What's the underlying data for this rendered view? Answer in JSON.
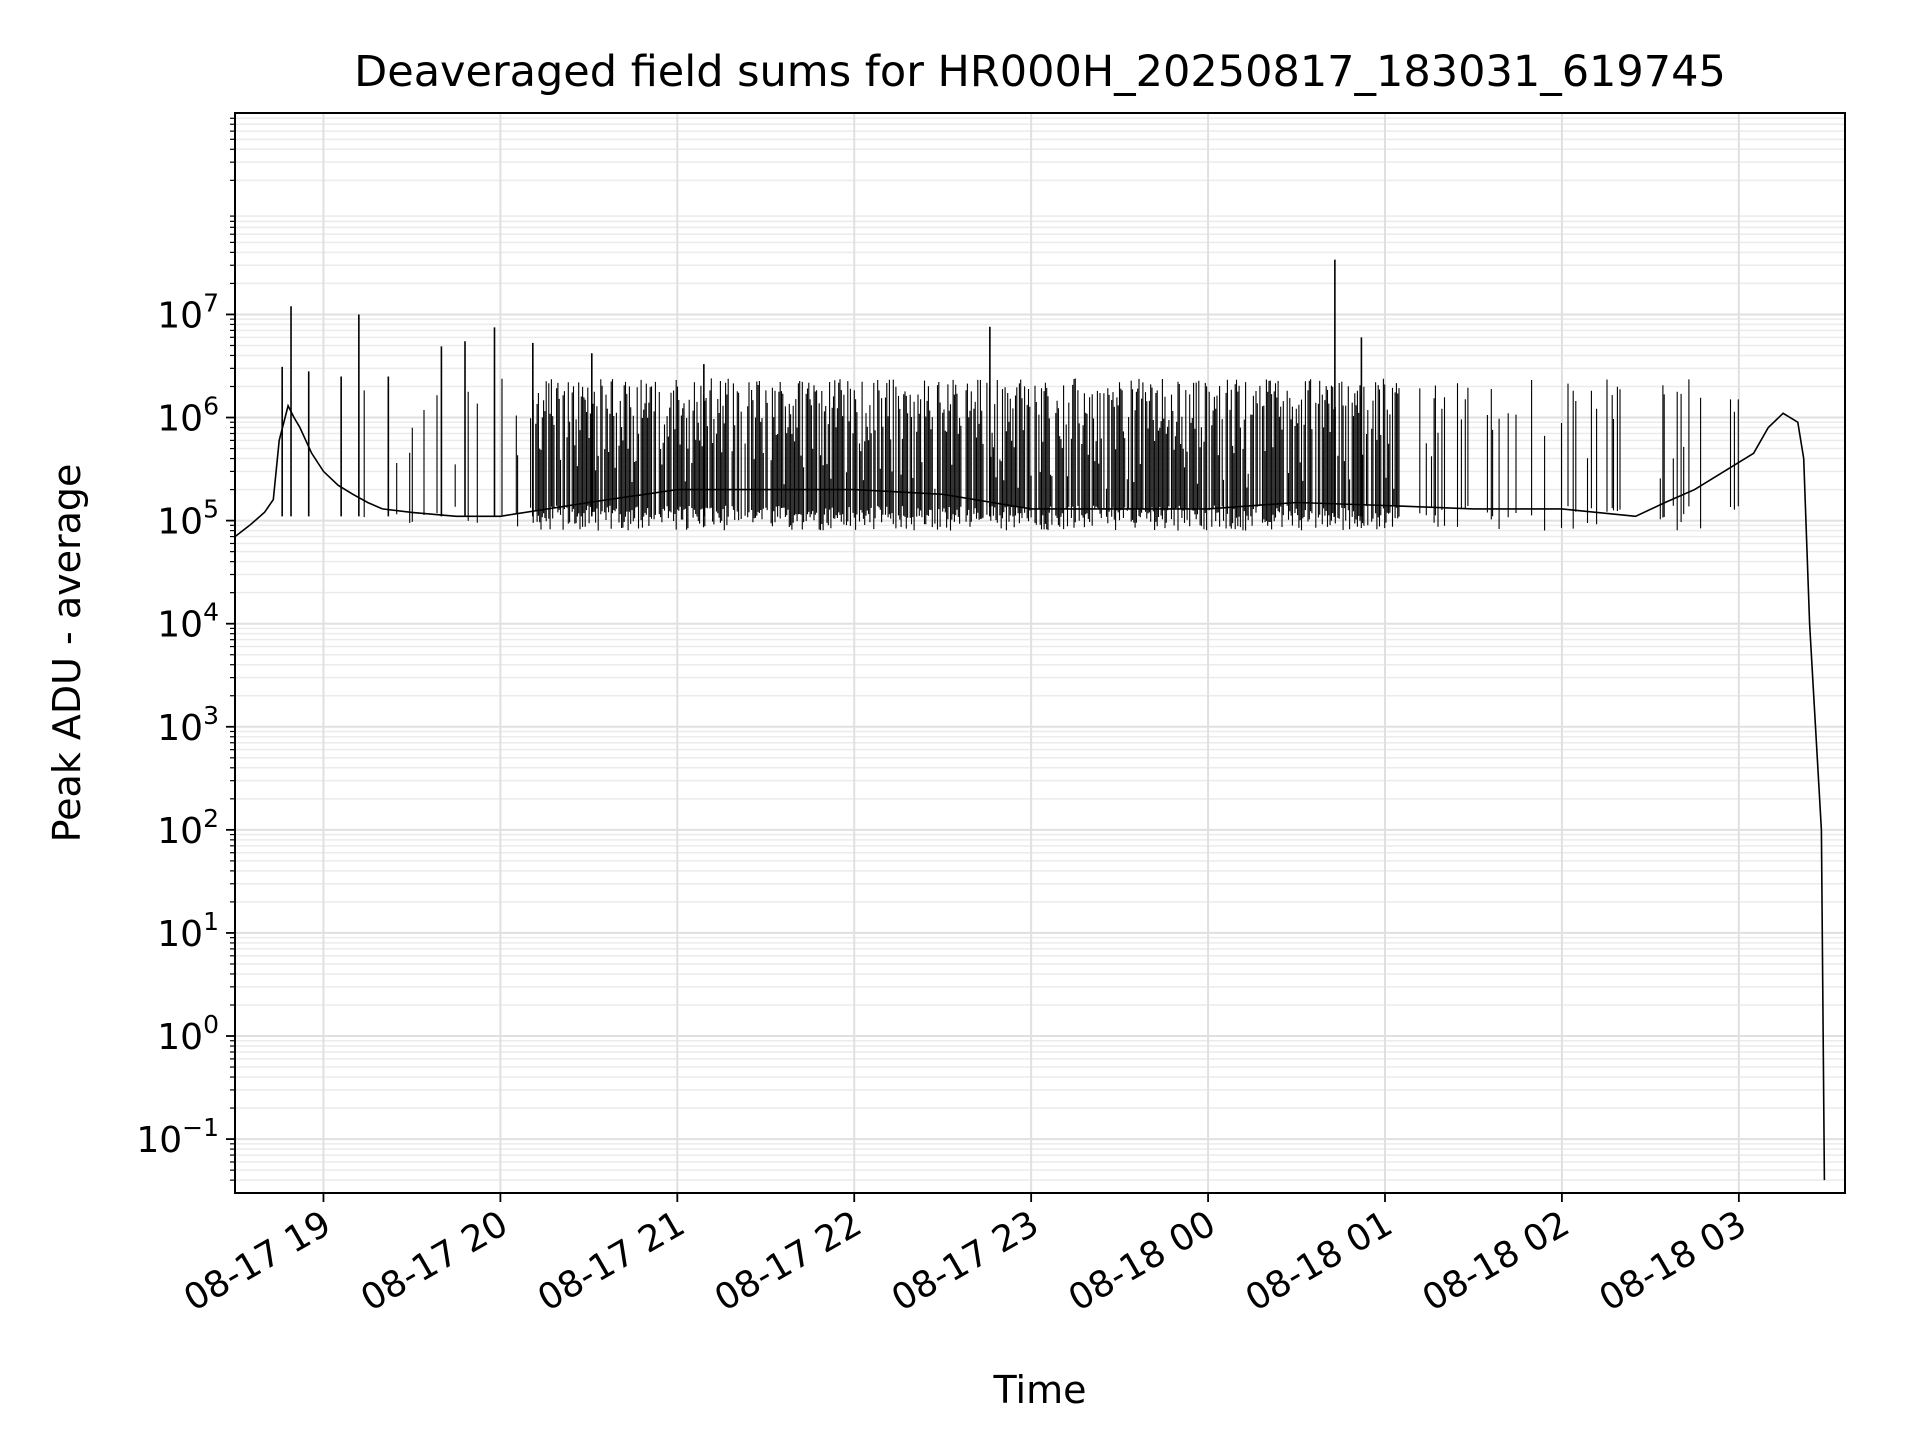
{
  "chart_data": {
    "type": "line",
    "title": "Deaveraged field sums for HR000H_20250817_183031_619745",
    "xlabel": "Time",
    "ylabel": "Peak ADU - average",
    "x_scale": "time",
    "y_scale": "log",
    "xlim": [
      "2025-08-17 18:30",
      "2025-08-18 03:36"
    ],
    "ylim": [
      0.03,
      900000000
    ],
    "x_ticks": [
      {
        "t": "2025-08-17 19:00",
        "label": "08-17 19"
      },
      {
        "t": "2025-08-17 20:00",
        "label": "08-17 20"
      },
      {
        "t": "2025-08-17 21:00",
        "label": "08-17 21"
      },
      {
        "t": "2025-08-17 22:00",
        "label": "08-17 22"
      },
      {
        "t": "2025-08-17 23:00",
        "label": "08-17 23"
      },
      {
        "t": "2025-08-18 00:00",
        "label": "08-18 00"
      },
      {
        "t": "2025-08-18 01:00",
        "label": "08-18 01"
      },
      {
        "t": "2025-08-18 02:00",
        "label": "08-18 02"
      },
      {
        "t": "2025-08-18 03:00",
        "label": "08-18 03"
      }
    ],
    "y_ticks": [
      {
        "value": 0.1,
        "base": "10",
        "exp": "−1"
      },
      {
        "value": 1,
        "base": "10",
        "exp": "0"
      },
      {
        "value": 10,
        "base": "10",
        "exp": "1"
      },
      {
        "value": 100,
        "base": "10",
        "exp": "2"
      },
      {
        "value": 1000,
        "base": "10",
        "exp": "3"
      },
      {
        "value": 10000,
        "base": "10",
        "exp": "4"
      },
      {
        "value": 100000,
        "base": "10",
        "exp": "5"
      },
      {
        "value": 1000000,
        "base": "10",
        "exp": "6"
      },
      {
        "value": 10000000,
        "base": "10",
        "exp": "7"
      }
    ],
    "grid": true,
    "legend": "none",
    "line_color": "#000000",
    "series": [
      {
        "x": [
          "2025-08-17 18:30",
          "2025-08-17 18:35",
          "2025-08-17 18:40",
          "2025-08-17 18:43",
          "2025-08-17 18:45",
          "2025-08-17 18:48",
          "2025-08-17 18:50",
          "2025-08-17 18:52",
          "2025-08-17 18:54",
          "2025-08-17 18:56",
          "2025-08-17 19:00",
          "2025-08-17 19:05",
          "2025-08-17 19:10",
          "2025-08-17 19:15",
          "2025-08-17 19:20",
          "2025-08-17 19:30",
          "2025-08-17 19:45",
          "2025-08-17 20:00",
          "2025-08-17 20:30",
          "2025-08-17 21:00",
          "2025-08-17 21:30",
          "2025-08-17 22:00",
          "2025-08-17 22:30",
          "2025-08-17 23:00",
          "2025-08-17 23:30",
          "2025-08-18 00:00",
          "2025-08-18 00:30",
          "2025-08-18 01:00",
          "2025-08-18 01:30",
          "2025-08-18 02:00",
          "2025-08-18 02:25",
          "2025-08-18 02:35",
          "2025-08-18 02:45",
          "2025-08-18 02:55",
          "2025-08-18 03:05",
          "2025-08-18 03:10",
          "2025-08-18 03:15",
          "2025-08-18 03:20",
          "2025-08-18 03:22",
          "2025-08-18 03:24",
          "2025-08-18 03:26",
          "2025-08-18 03:28",
          "2025-08-18 03:29"
        ],
        "values": [
          70000,
          90000,
          120000,
          160000,
          600000,
          1300000,
          1000000,
          800000,
          600000,
          450000,
          300000,
          220000,
          180000,
          150000,
          130000,
          120000,
          110000,
          110000,
          150000,
          200000,
          200000,
          200000,
          180000,
          130000,
          130000,
          130000,
          150000,
          140000,
          130000,
          130000,
          110000,
          150000,
          200000,
          300000,
          450000,
          800000,
          1100000,
          900000,
          400000,
          10000,
          1000,
          100,
          0.04
        ]
      }
    ],
    "spikes": {
      "description": "dense vertical spikes between baseline ~1e5 and peaks",
      "band_peak": 2400000,
      "notable_peaks": [
        {
          "t": "2025-08-17 18:49",
          "value": 12000000
        },
        {
          "t": "2025-08-17 18:46",
          "value": 3100000
        },
        {
          "t": "2025-08-17 18:55",
          "value": 2800000
        },
        {
          "t": "2025-08-17 19:12",
          "value": 10000000
        },
        {
          "t": "2025-08-17 19:06",
          "value": 2500000
        },
        {
          "t": "2025-08-17 19:22",
          "value": 2500000
        },
        {
          "t": "2025-08-17 19:40",
          "value": 4900000
        },
        {
          "t": "2025-08-17 19:48",
          "value": 5500000
        },
        {
          "t": "2025-08-17 19:58",
          "value": 7500000
        },
        {
          "t": "2025-08-17 20:11",
          "value": 5300000
        },
        {
          "t": "2025-08-17 20:31",
          "value": 4200000
        },
        {
          "t": "2025-08-17 21:09",
          "value": 3300000
        },
        {
          "t": "2025-08-17 22:46",
          "value": 7600000
        },
        {
          "t": "2025-08-18 00:43",
          "value": 34000000
        },
        {
          "t": "2025-08-18 00:52",
          "value": 6000000
        }
      ]
    }
  }
}
